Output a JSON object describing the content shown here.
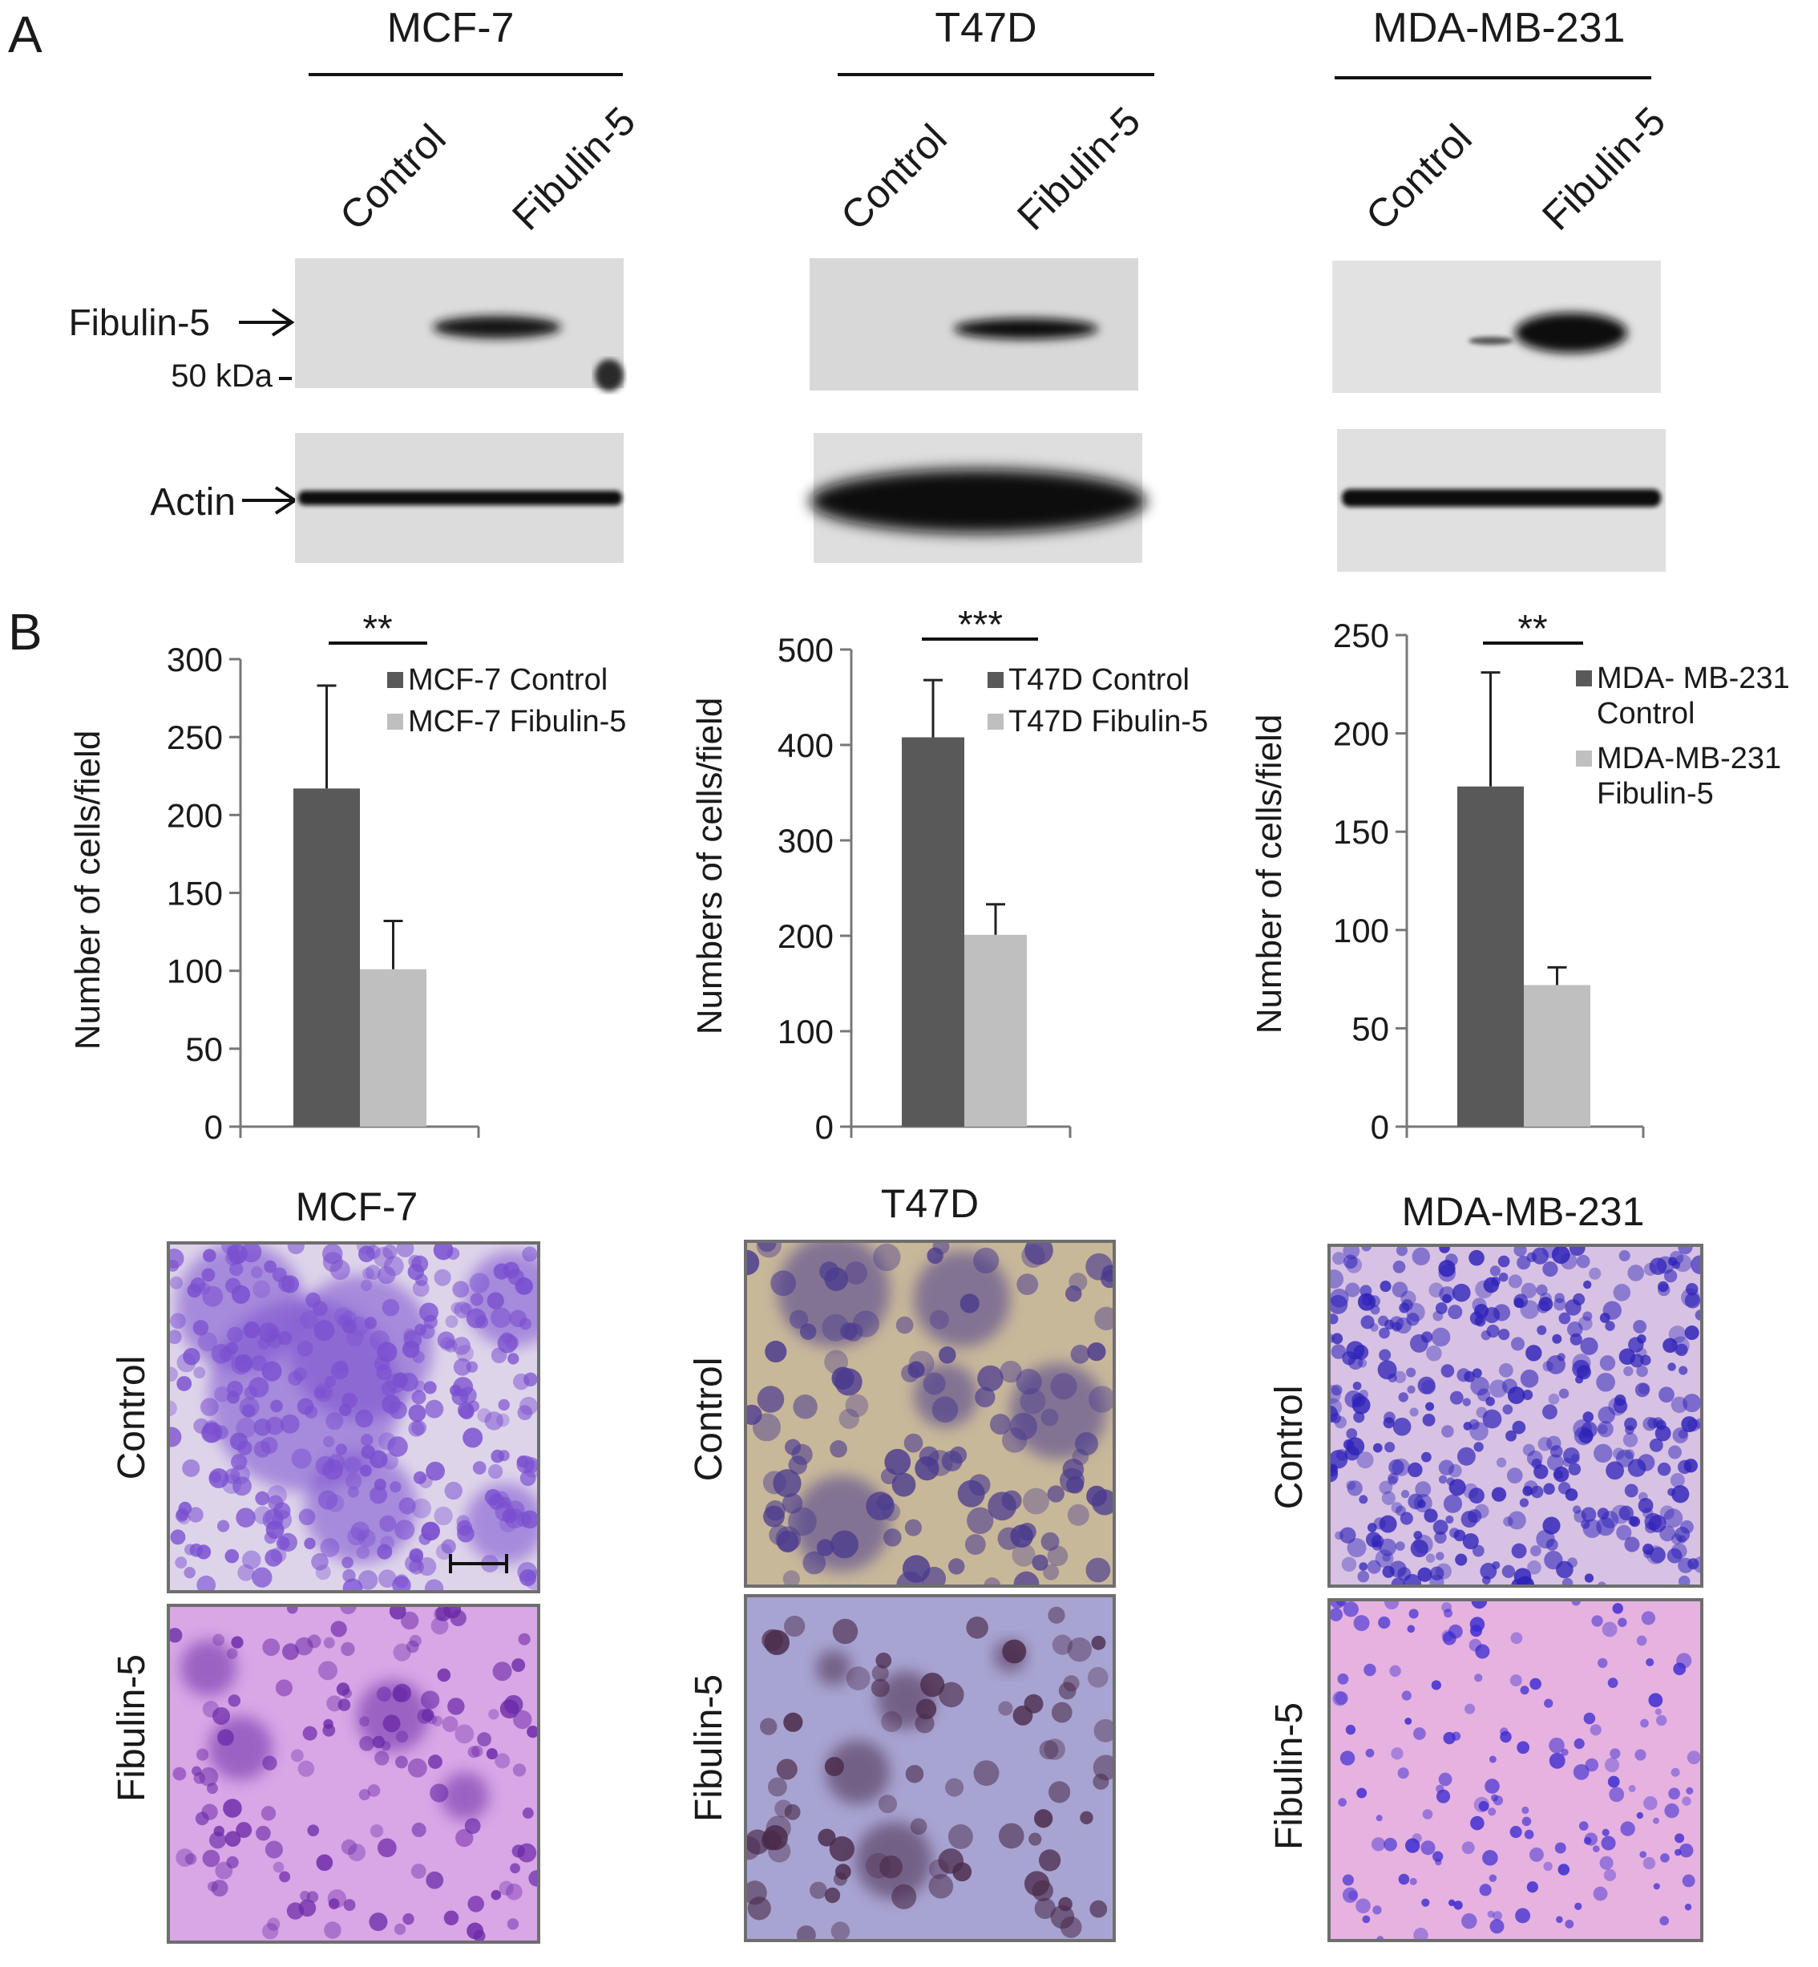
{
  "panel_a": {
    "letter": "A",
    "marker_label": "50 kDa",
    "row_labels": [
      "Fibulin-5",
      "Actin"
    ],
    "cell_lines": [
      {
        "name": "MCF-7",
        "lanes": [
          "Control",
          "Fibulin-5"
        ]
      },
      {
        "name": "T47D",
        "lanes": [
          "Control",
          "Fibulin-5"
        ]
      },
      {
        "name": "MDA-MB-231",
        "lanes": [
          "Control",
          "Fibulin-5"
        ]
      }
    ]
  },
  "panel_b": {
    "letter": "B",
    "micrographs": [
      {
        "title": "MCF-7",
        "rows": [
          "Control",
          "Fibulin-5"
        ]
      },
      {
        "title": "T47D",
        "rows": [
          "Control",
          "Fibulin-5"
        ]
      },
      {
        "title": "MDA-MB-231",
        "rows": [
          "Control",
          "Fibulin-5"
        ]
      }
    ]
  },
  "chart_data": [
    {
      "type": "bar",
      "ylabel": "Number of cells/field",
      "ylim": [
        0,
        300
      ],
      "yticks": [
        0,
        50,
        100,
        150,
        200,
        250,
        300
      ],
      "significance": "**",
      "series": [
        {
          "name": "MCF-7 Control",
          "value": 217,
          "error": 66,
          "color": "#595959"
        },
        {
          "name": "MCF-7 Fibulin-5",
          "value": 101,
          "error": 31,
          "color": "#bfbfbf"
        }
      ],
      "legend": [
        [
          "MCF-7 Control"
        ],
        [
          "MCF-7 Fibulin-5"
        ]
      ],
      "legend_position": "top-right"
    },
    {
      "type": "bar",
      "ylabel": "Numbers of cells/field",
      "ylim": [
        0,
        500
      ],
      "yticks": [
        0,
        100,
        200,
        300,
        400,
        500
      ],
      "significance": "***",
      "series": [
        {
          "name": "T47D Control",
          "value": 408,
          "error": 60,
          "color": "#595959"
        },
        {
          "name": "T47D Fibulin-5",
          "value": 201,
          "error": 32,
          "color": "#bfbfbf"
        }
      ],
      "legend": [
        [
          "T47D Control"
        ],
        [
          "T47D Fibulin-5"
        ]
      ],
      "legend_position": "top-right"
    },
    {
      "type": "bar",
      "ylabel": "Number of cells/field",
      "ylim": [
        0,
        250
      ],
      "yticks": [
        0,
        50,
        100,
        150,
        200,
        250
      ],
      "significance": "**",
      "series": [
        {
          "name": "MDA- MB-231 Control",
          "value": 173,
          "error": 58,
          "color": "#595959"
        },
        {
          "name": "MDA-MB-231 Fibulin-5",
          "value": 72,
          "error": 9,
          "color": "#bfbfbf"
        }
      ],
      "legend": [
        [
          "MDA- MB-231",
          "Control"
        ],
        [
          "MDA-MB-231",
          "Fibulin-5"
        ]
      ],
      "legend_position": "top-right"
    }
  ]
}
